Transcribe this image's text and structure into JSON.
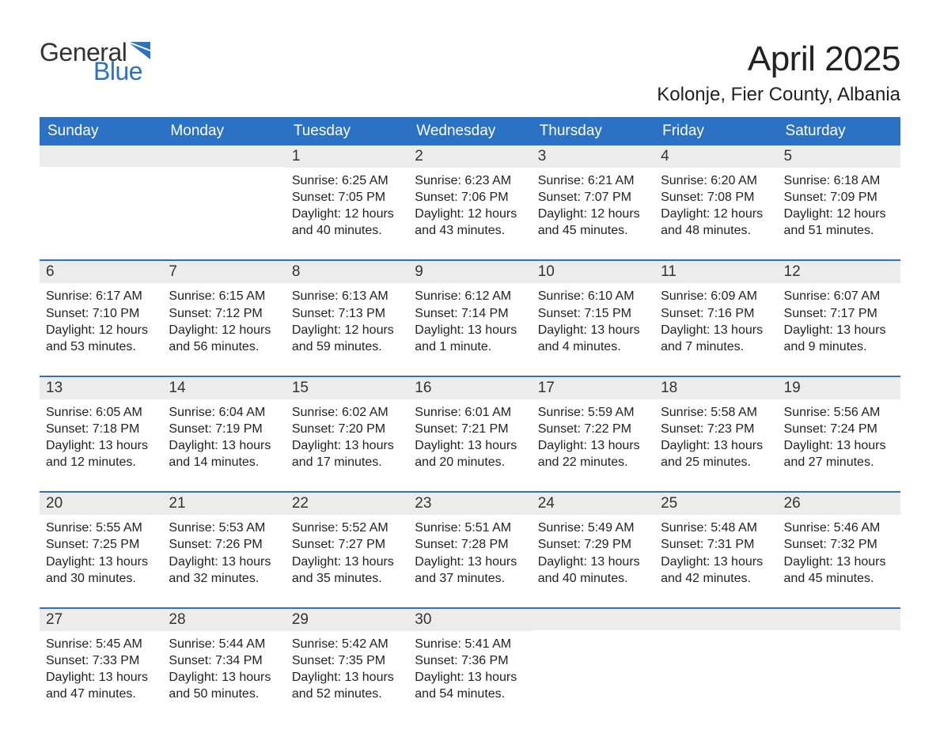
{
  "logo": {
    "word1": "General",
    "word2": "Blue"
  },
  "title": "April 2025",
  "location": "Kolonje, Fier County, Albania",
  "colors": {
    "header_bg": "#2b72c4",
    "header_text": "#ffffff",
    "daynum_bg": "#ececec",
    "rule": "#2b72c4",
    "body_text": "#222222",
    "logo_gray": "#333333",
    "logo_blue": "#2b72c4",
    "page_bg": "#ffffff"
  },
  "typography": {
    "title_fontsize": 44,
    "location_fontsize": 24,
    "weekday_fontsize": 19,
    "daynum_fontsize": 19,
    "body_fontsize": 16,
    "logo_fontsize": 32
  },
  "weekdays": [
    "Sunday",
    "Monday",
    "Tuesday",
    "Wednesday",
    "Thursday",
    "Friday",
    "Saturday"
  ],
  "labels": {
    "sunrise": "Sunrise: ",
    "sunset": "Sunset: ",
    "daylight": "Daylight: "
  },
  "weeks": [
    [
      {
        "day": "",
        "sunrise": "",
        "sunset": "",
        "daylight": ""
      },
      {
        "day": "",
        "sunrise": "",
        "sunset": "",
        "daylight": ""
      },
      {
        "day": "1",
        "sunrise": "6:25 AM",
        "sunset": "7:05 PM",
        "daylight": "12 hours and 40 minutes."
      },
      {
        "day": "2",
        "sunrise": "6:23 AM",
        "sunset": "7:06 PM",
        "daylight": "12 hours and 43 minutes."
      },
      {
        "day": "3",
        "sunrise": "6:21 AM",
        "sunset": "7:07 PM",
        "daylight": "12 hours and 45 minutes."
      },
      {
        "day": "4",
        "sunrise": "6:20 AM",
        "sunset": "7:08 PM",
        "daylight": "12 hours and 48 minutes."
      },
      {
        "day": "5",
        "sunrise": "6:18 AM",
        "sunset": "7:09 PM",
        "daylight": "12 hours and 51 minutes."
      }
    ],
    [
      {
        "day": "6",
        "sunrise": "6:17 AM",
        "sunset": "7:10 PM",
        "daylight": "12 hours and 53 minutes."
      },
      {
        "day": "7",
        "sunrise": "6:15 AM",
        "sunset": "7:12 PM",
        "daylight": "12 hours and 56 minutes."
      },
      {
        "day": "8",
        "sunrise": "6:13 AM",
        "sunset": "7:13 PM",
        "daylight": "12 hours and 59 minutes."
      },
      {
        "day": "9",
        "sunrise": "6:12 AM",
        "sunset": "7:14 PM",
        "daylight": "13 hours and 1 minute."
      },
      {
        "day": "10",
        "sunrise": "6:10 AM",
        "sunset": "7:15 PM",
        "daylight": "13 hours and 4 minutes."
      },
      {
        "day": "11",
        "sunrise": "6:09 AM",
        "sunset": "7:16 PM",
        "daylight": "13 hours and 7 minutes."
      },
      {
        "day": "12",
        "sunrise": "6:07 AM",
        "sunset": "7:17 PM",
        "daylight": "13 hours and 9 minutes."
      }
    ],
    [
      {
        "day": "13",
        "sunrise": "6:05 AM",
        "sunset": "7:18 PM",
        "daylight": "13 hours and 12 minutes."
      },
      {
        "day": "14",
        "sunrise": "6:04 AM",
        "sunset": "7:19 PM",
        "daylight": "13 hours and 14 minutes."
      },
      {
        "day": "15",
        "sunrise": "6:02 AM",
        "sunset": "7:20 PM",
        "daylight": "13 hours and 17 minutes."
      },
      {
        "day": "16",
        "sunrise": "6:01 AM",
        "sunset": "7:21 PM",
        "daylight": "13 hours and 20 minutes."
      },
      {
        "day": "17",
        "sunrise": "5:59 AM",
        "sunset": "7:22 PM",
        "daylight": "13 hours and 22 minutes."
      },
      {
        "day": "18",
        "sunrise": "5:58 AM",
        "sunset": "7:23 PM",
        "daylight": "13 hours and 25 minutes."
      },
      {
        "day": "19",
        "sunrise": "5:56 AM",
        "sunset": "7:24 PM",
        "daylight": "13 hours and 27 minutes."
      }
    ],
    [
      {
        "day": "20",
        "sunrise": "5:55 AM",
        "sunset": "7:25 PM",
        "daylight": "13 hours and 30 minutes."
      },
      {
        "day": "21",
        "sunrise": "5:53 AM",
        "sunset": "7:26 PM",
        "daylight": "13 hours and 32 minutes."
      },
      {
        "day": "22",
        "sunrise": "5:52 AM",
        "sunset": "7:27 PM",
        "daylight": "13 hours and 35 minutes."
      },
      {
        "day": "23",
        "sunrise": "5:51 AM",
        "sunset": "7:28 PM",
        "daylight": "13 hours and 37 minutes."
      },
      {
        "day": "24",
        "sunrise": "5:49 AM",
        "sunset": "7:29 PM",
        "daylight": "13 hours and 40 minutes."
      },
      {
        "day": "25",
        "sunrise": "5:48 AM",
        "sunset": "7:31 PM",
        "daylight": "13 hours and 42 minutes."
      },
      {
        "day": "26",
        "sunrise": "5:46 AM",
        "sunset": "7:32 PM",
        "daylight": "13 hours and 45 minutes."
      }
    ],
    [
      {
        "day": "27",
        "sunrise": "5:45 AM",
        "sunset": "7:33 PM",
        "daylight": "13 hours and 47 minutes."
      },
      {
        "day": "28",
        "sunrise": "5:44 AM",
        "sunset": "7:34 PM",
        "daylight": "13 hours and 50 minutes."
      },
      {
        "day": "29",
        "sunrise": "5:42 AM",
        "sunset": "7:35 PM",
        "daylight": "13 hours and 52 minutes."
      },
      {
        "day": "30",
        "sunrise": "5:41 AM",
        "sunset": "7:36 PM",
        "daylight": "13 hours and 54 minutes."
      },
      {
        "day": "",
        "sunrise": "",
        "sunset": "",
        "daylight": ""
      },
      {
        "day": "",
        "sunrise": "",
        "sunset": "",
        "daylight": ""
      },
      {
        "day": "",
        "sunrise": "",
        "sunset": "",
        "daylight": ""
      }
    ]
  ]
}
